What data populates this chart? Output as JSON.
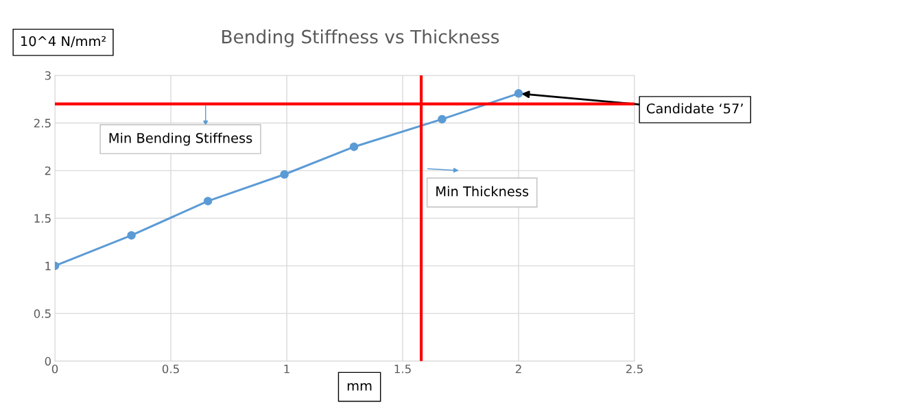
{
  "chart_data": {
    "type": "line",
    "title": "Bending Stiffness vs Thickness",
    "xlabel": "mm",
    "ylabel": "10^4 N/mm²",
    "x": [
      0,
      0.33,
      0.66,
      0.99,
      1.29,
      1.67,
      2.0
    ],
    "series": [
      {
        "color": "#5b9bd5",
        "values": [
          1.0,
          1.32,
          1.68,
          1.96,
          2.25,
          2.54,
          2.81
        ]
      }
    ],
    "xlim": [
      0,
      2.5
    ],
    "xticks": [
      0,
      0.5,
      1,
      1.5,
      2,
      2.5
    ],
    "ylim": [
      0,
      3
    ],
    "yticks": [
      0,
      0.5,
      1,
      1.5,
      2,
      2.5,
      3
    ],
    "grid": true,
    "marker": "circle",
    "line_style": "solid",
    "ref_lines": [
      {
        "axis": "y",
        "value": 2.7,
        "label": "Min Bending Stiffness",
        "color": "#ff0000"
      },
      {
        "axis": "x",
        "value": 1.58,
        "label": "Min Thickness",
        "color": "#ff0000"
      }
    ],
    "annotations": [
      {
        "text": "Candidate ‘57’",
        "x": 2.0,
        "y": 2.81
      }
    ]
  }
}
